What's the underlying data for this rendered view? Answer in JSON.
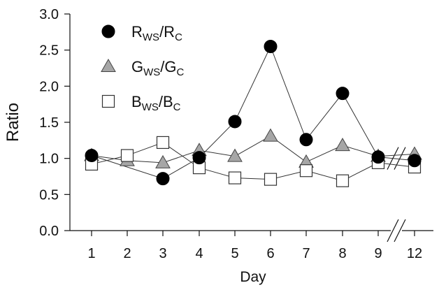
{
  "chart_data": {
    "type": "line",
    "title": "",
    "xlabel": "Day",
    "ylabel": "Ratio",
    "ylim": [
      0,
      3.0
    ],
    "yticks": [
      "0.0",
      "0.5",
      "1.0",
      "1.5",
      "2.0",
      "2.5",
      "3.0"
    ],
    "categories": [
      "1",
      "2",
      "3",
      "4",
      "5",
      "6",
      "7",
      "8",
      "9",
      "12"
    ],
    "axis_break": "between 9 and 12",
    "legend_position": "top-left",
    "grid": false,
    "series": [
      {
        "name_main": "R",
        "name_sub1": "WS",
        "name_mid": "/R",
        "name_sub2": "C",
        "marker": "circle",
        "color": "#000000",
        "values": [
          1.04,
          null,
          0.72,
          1.01,
          1.51,
          2.55,
          1.26,
          1.9,
          1.02,
          0.97
        ]
      },
      {
        "name_main": "G",
        "name_sub1": "WS",
        "name_mid": "/G",
        "name_sub2": "C",
        "marker": "triangle",
        "color": "#a6a6a6",
        "values": [
          1.04,
          0.97,
          0.94,
          1.11,
          1.03,
          1.31,
          0.95,
          1.18,
          1.03,
          1.06
        ]
      },
      {
        "name_main": "B",
        "name_sub1": "WS",
        "name_mid": "/B",
        "name_sub2": "C",
        "marker": "square",
        "color": "#ffffff",
        "values": [
          0.92,
          1.04,
          1.22,
          0.87,
          0.73,
          0.71,
          0.83,
          0.69,
          0.94,
          0.88
        ]
      }
    ]
  }
}
